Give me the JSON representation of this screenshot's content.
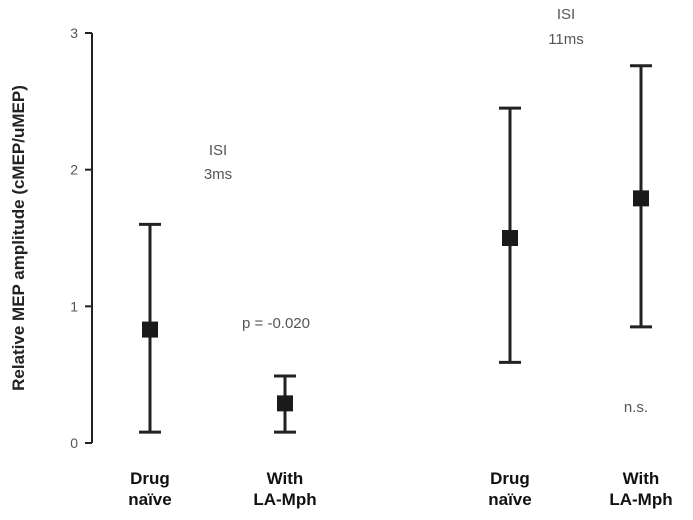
{
  "chart_data": {
    "type": "scatter",
    "ylabel": "Relative MEP amplitude (cMEP/uMEP)",
    "ylim": [
      0,
      3
    ],
    "yticks": [
      "0",
      "1",
      "2",
      "3"
    ],
    "grid": false,
    "categories": [
      {
        "line1": "Drug",
        "line2": "naïve"
      },
      {
        "line1": "With",
        "line2": "LA-Mph"
      },
      {
        "line1": "Drug",
        "line2": "naïve"
      },
      {
        "line1": "With",
        "line2": "LA-Mph"
      }
    ],
    "points": [
      {
        "mean": 0.83,
        "low": 0.08,
        "high": 1.6
      },
      {
        "mean": 0.29,
        "low": 0.08,
        "high": 0.49
      },
      {
        "mean": 1.5,
        "low": 0.59,
        "high": 2.45
      },
      {
        "mean": 1.79,
        "low": 0.85,
        "high": 2.76
      }
    ],
    "annotations": [
      {
        "lines": [
          "ISI",
          "3ms"
        ]
      },
      {
        "lines": [
          "p = -0.020"
        ]
      },
      {
        "lines": [
          "ISI",
          "11ms"
        ]
      },
      {
        "lines": [
          "n.s."
        ]
      }
    ]
  }
}
